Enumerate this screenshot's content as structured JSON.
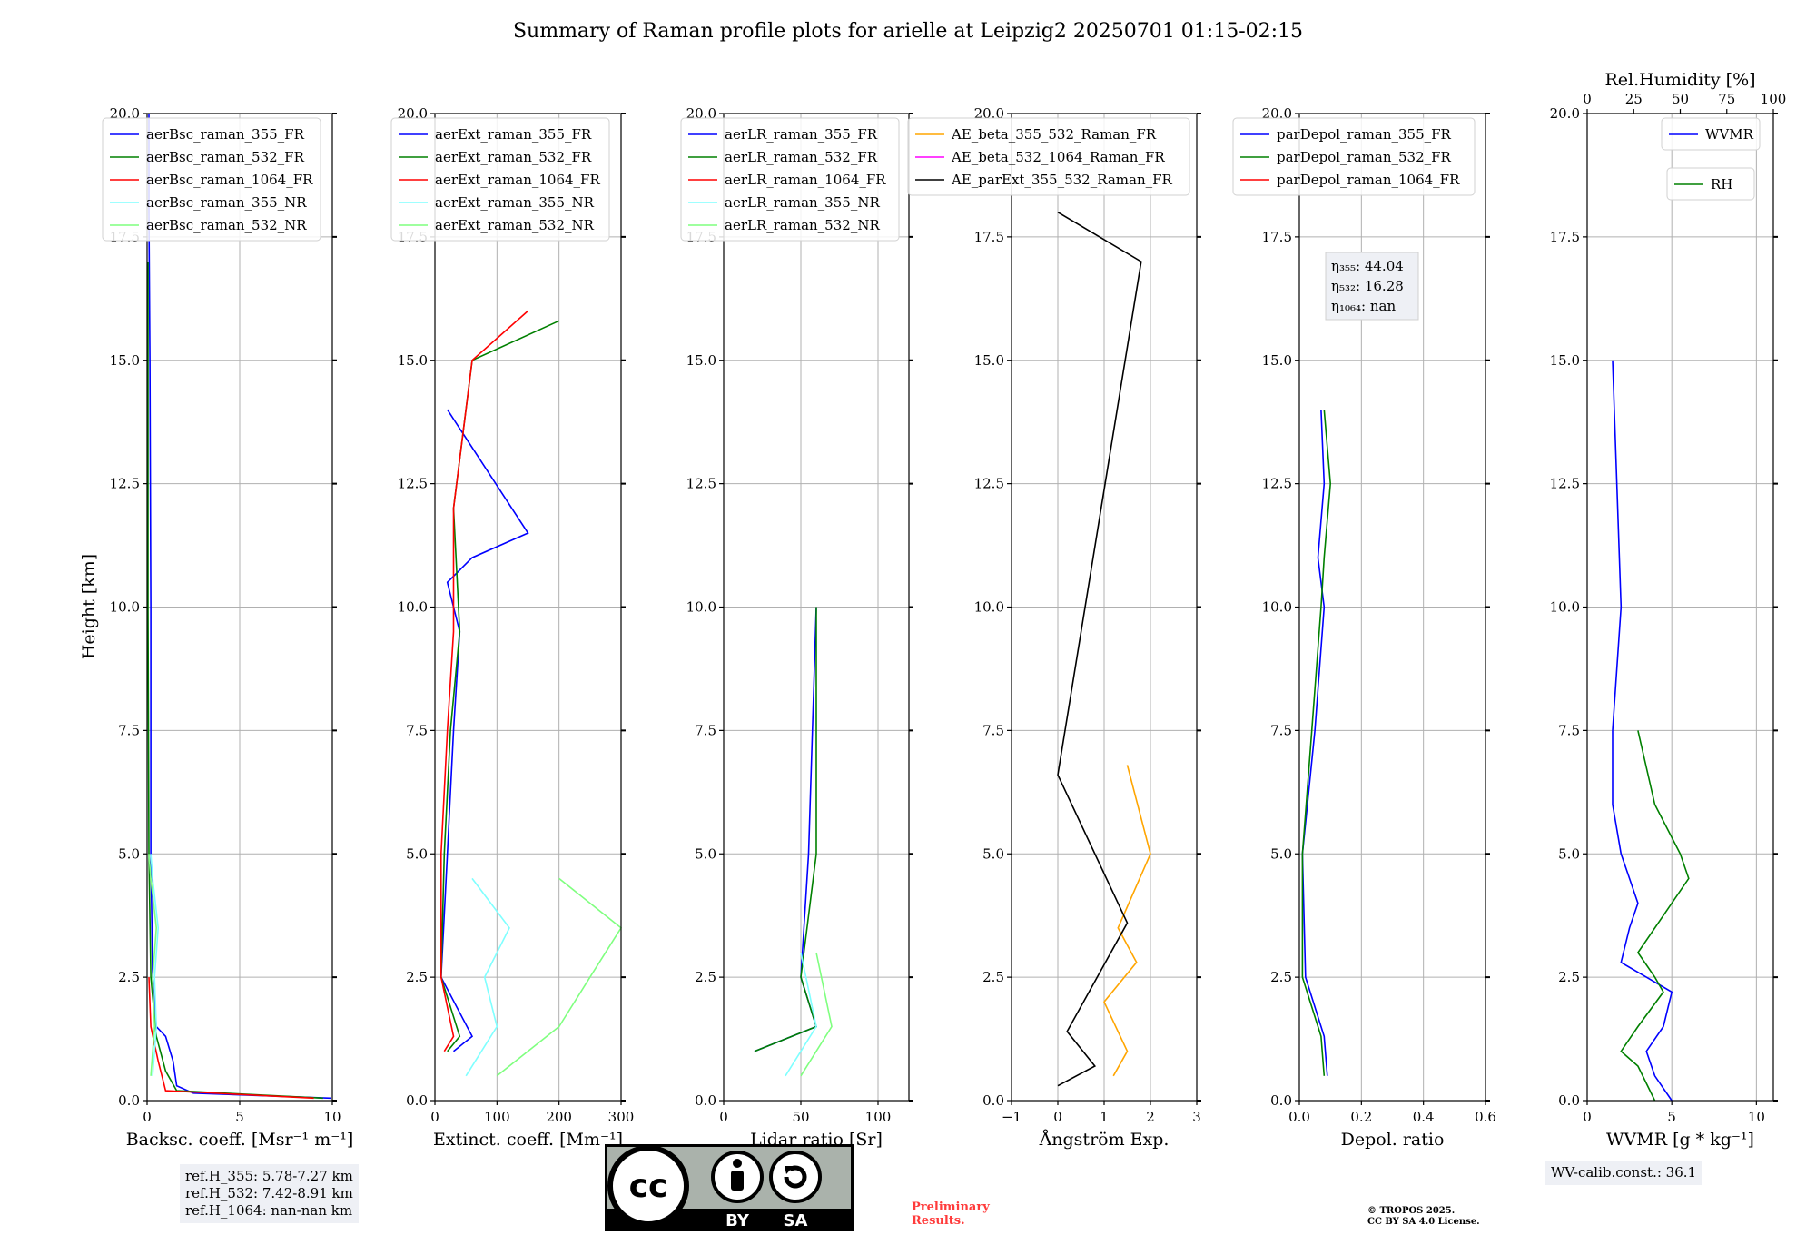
{
  "title": "Summary of Raman profile plots for arielle at Leipzig2 20250701 01:15-02:15",
  "y_label": "Height [km]",
  "y_ticks": [
    "0.0",
    "2.5",
    "5.0",
    "7.5",
    "10.0",
    "12.5",
    "15.0",
    "17.5",
    "20.0"
  ],
  "colors": {
    "b355": "#0000ff",
    "g532": "#008000",
    "r1064": "#ff0000",
    "cyan": "#7fffff",
    "lgreen": "#7fff7f",
    "orange": "#ffa500",
    "magenta": "#ff00ff",
    "black": "#000000"
  },
  "panels": [
    {
      "xlabel": "Backsc. coeff. [Msr⁻¹ m⁻¹]",
      "xticks": [
        "0",
        "5",
        "10"
      ],
      "legend": [
        "aerBsc_raman_355_FR",
        "aerBsc_raman_532_FR",
        "aerBsc_raman_1064_FR",
        "aerBsc_raman_355_NR",
        "aerBsc_raman_532_NR"
      ]
    },
    {
      "xlabel": "Extinct. coeff. [Mm⁻¹]",
      "xticks": [
        "0",
        "100",
        "200",
        "300"
      ],
      "legend": [
        "aerExt_raman_355_FR",
        "aerExt_raman_532_FR",
        "aerExt_raman_1064_FR",
        "aerExt_raman_355_NR",
        "aerExt_raman_532_NR"
      ]
    },
    {
      "xlabel": "Lidar ratio [Sr]",
      "xticks": [
        "0",
        "50",
        "100"
      ],
      "legend": [
        "aerLR_raman_355_FR",
        "aerLR_raman_532_FR",
        "aerLR_raman_1064_FR",
        "aerLR_raman_355_NR",
        "aerLR_raman_532_NR"
      ]
    },
    {
      "xlabel": "Ångström Exp.",
      "xticks": [
        "−1",
        "0",
        "1",
        "2",
        "3"
      ],
      "legend": [
        "AE_beta_355_532_Raman_FR",
        "AE_beta_532_1064_Raman_FR",
        "AE_parExt_355_532_Raman_FR"
      ]
    },
    {
      "xlabel": "Depol. ratio",
      "xticks": [
        "0.0",
        "0.2",
        "0.4",
        "0.6"
      ],
      "legend": [
        "parDepol_raman_355_FR",
        "parDepol_raman_532_FR",
        "parDepol_raman_1064_FR"
      ],
      "eta": [
        "η₃₅₅: 44.04",
        "η₅₃₂: 16.28",
        "η₁₀₆₄: nan"
      ]
    },
    {
      "xlabel": "WVMR [g * kg⁻¹]",
      "xticks": [
        "0",
        "5",
        "10"
      ],
      "top_label": "Rel.Humidity [%]",
      "top_ticks": [
        "0",
        "25",
        "50",
        "75",
        "100"
      ],
      "legend_wvmr": "WVMR",
      "legend_rh": "RH"
    }
  ],
  "chart_data": [
    {
      "type": "line",
      "panel": "backscatter",
      "ylim": [
        0,
        20
      ],
      "xlim": [
        0,
        10
      ],
      "xlabel": "Backsc. coeff. [Msr-1 m-1]",
      "ylabel": "Height [km]",
      "series": [
        {
          "name": "aerBsc_raman_355_FR",
          "x": [
            9.9,
            2.5,
            1.6,
            1.4,
            1.0,
            0.5,
            0.3,
            0.2,
            0.2,
            0.15,
            0.1,
            0.1
          ],
          "y": [
            0.05,
            0.15,
            0.3,
            0.8,
            1.3,
            1.5,
            2.5,
            5,
            10,
            15,
            18,
            20
          ]
        },
        {
          "name": "aerBsc_raman_532_FR",
          "x": [
            9.5,
            1.6,
            1.0,
            0.5,
            0.2,
            0.1,
            0.05,
            0.05
          ],
          "y": [
            0.05,
            0.2,
            0.6,
            1.3,
            2.5,
            5,
            10,
            17
          ]
        },
        {
          "name": "aerBsc_raman_1064_FR",
          "x": [
            9.0,
            1.0,
            0.6,
            0.2,
            0.1
          ],
          "y": [
            0.05,
            0.2,
            0.8,
            1.5,
            2.5
          ]
        },
        {
          "name": "aerBsc_raman_355_NR",
          "x": [
            0.3,
            0.5,
            0.4,
            0.6,
            0.3,
            0.2
          ],
          "y": [
            0.5,
            1.5,
            2.5,
            3.5,
            4.5,
            5
          ]
        },
        {
          "name": "aerBsc_raman_532_NR",
          "x": [
            0.2,
            0.4,
            0.3,
            0.5,
            0.2,
            0.1
          ],
          "y": [
            0.5,
            1.5,
            2.5,
            3.5,
            4.5,
            5
          ]
        }
      ]
    },
    {
      "type": "line",
      "panel": "extinction",
      "ylim": [
        0,
        20
      ],
      "xlim": [
        0,
        300
      ],
      "xlabel": "Extinct. coeff. [Mm-1]",
      "series": [
        {
          "name": "aerExt_raman_355_FR",
          "x": [
            30,
            60,
            10,
            20,
            30,
            40,
            20,
            60,
            150,
            20
          ],
          "y": [
            1.0,
            1.3,
            2.5,
            5,
            7.5,
            9.5,
            10.5,
            11.0,
            11.5,
            14
          ]
        },
        {
          "name": "aerExt_raman_532_FR",
          "x": [
            20,
            40,
            10,
            15,
            25,
            40,
            30,
            60,
            200
          ],
          "y": [
            1.0,
            1.3,
            2.5,
            5,
            7.5,
            9.5,
            12,
            15,
            15.8
          ]
        },
        {
          "name": "aerExt_raman_1064_FR",
          "x": [
            15,
            30,
            10,
            10,
            20,
            30,
            30,
            60,
            150
          ],
          "y": [
            1.0,
            1.3,
            2.5,
            5,
            7.5,
            9.5,
            12,
            15,
            16
          ]
        },
        {
          "name": "aerExt_raman_355_NR",
          "x": [
            50,
            100,
            80,
            120,
            60
          ],
          "y": [
            0.5,
            1.5,
            2.5,
            3.5,
            4.5
          ]
        },
        {
          "name": "aerExt_raman_532_NR",
          "x": [
            100,
            200,
            250,
            300,
            200
          ],
          "y": [
            0.5,
            1.5,
            2.5,
            3.5,
            4.5
          ]
        }
      ]
    },
    {
      "type": "line",
      "panel": "lidar_ratio",
      "ylim": [
        0,
        20
      ],
      "xlim": [
        0,
        120
      ],
      "xlabel": "Lidar ratio [Sr]",
      "series": [
        {
          "name": "aerLR_raman_355_FR",
          "x": [
            20,
            60,
            50,
            55,
            60
          ],
          "y": [
            1.0,
            1.5,
            2.5,
            5,
            10
          ]
        },
        {
          "name": "aerLR_raman_532_FR",
          "x": [
            20,
            60,
            50,
            60,
            60
          ],
          "y": [
            1.0,
            1.5,
            2.5,
            5,
            10
          ]
        },
        {
          "name": "aerLR_raman_1064_FR",
          "x": [],
          "y": []
        },
        {
          "name": "aerLR_raman_355_NR",
          "x": [
            40,
            60,
            50
          ],
          "y": [
            0.5,
            1.5,
            3
          ]
        },
        {
          "name": "aerLR_raman_532_NR",
          "x": [
            50,
            70,
            60
          ],
          "y": [
            0.5,
            1.5,
            3
          ]
        }
      ]
    },
    {
      "type": "line",
      "panel": "angstrom",
      "ylim": [
        0,
        20
      ],
      "xlim": [
        -1,
        3
      ],
      "xlabel": "Ångström Exp.",
      "series": [
        {
          "name": "AE_beta_355_532_Raman_FR",
          "x": [
            1.2,
            1.5,
            1.0,
            1.7,
            1.3,
            2.0,
            1.5
          ],
          "y": [
            0.5,
            1.0,
            2.0,
            2.8,
            3.5,
            5.0,
            6.8
          ]
        },
        {
          "name": "AE_beta_532_1064_Raman_FR",
          "x": [],
          "y": []
        },
        {
          "name": "AE_parExt_355_532_Raman_FR",
          "x": [
            0.0,
            0.8,
            0.2,
            1.5,
            0.0,
            1.8,
            0.0
          ],
          "y": [
            0.3,
            0.7,
            1.4,
            3.6,
            6.6,
            17.0,
            18.0
          ]
        }
      ]
    },
    {
      "type": "line",
      "panel": "depol",
      "ylim": [
        0,
        20
      ],
      "xlim": [
        0,
        0.6
      ],
      "xlabel": "Depol. ratio",
      "series": [
        {
          "name": "parDepol_raman_355_FR",
          "x": [
            0.09,
            0.08,
            0.02,
            0.01,
            0.05,
            0.08,
            0.06,
            0.08,
            0.07
          ],
          "y": [
            0.5,
            1.3,
            2.5,
            5.0,
            7.5,
            10.0,
            11.0,
            12.5,
            14.0
          ]
        },
        {
          "name": "parDepol_raman_532_FR",
          "x": [
            0.08,
            0.07,
            0.01,
            0.01,
            0.04,
            0.07,
            0.08,
            0.1,
            0.08
          ],
          "y": [
            0.5,
            1.3,
            2.5,
            5.0,
            7.5,
            10.0,
            11.0,
            12.5,
            14.0
          ]
        },
        {
          "name": "parDepol_raman_1064_FR",
          "x": [],
          "y": []
        }
      ]
    },
    {
      "type": "line",
      "panel": "wvmr",
      "ylim": [
        0,
        20
      ],
      "xlim": [
        0,
        11
      ],
      "xlabel": "WVMR [g*kg-1]",
      "series": [
        {
          "name": "WVMR",
          "x": [
            5.0,
            4.0,
            3.5,
            4.5,
            5.0,
            3.5,
            2.0,
            2.5,
            3.0,
            2.5,
            2.0,
            1.5,
            1.5,
            2.0,
            1.5
          ],
          "y": [
            0.0,
            0.5,
            1.0,
            1.5,
            2.2,
            2.5,
            2.8,
            3.5,
            4.0,
            4.5,
            5.0,
            6.0,
            7.5,
            10.0,
            15.0
          ]
        },
        {
          "name": "RH",
          "x": [
            4.0,
            3.0,
            2.0,
            3.0,
            4.5,
            4.0,
            3.0,
            5.0,
            6.0,
            5.5,
            4.0,
            3.0
          ],
          "y": [
            0.0,
            0.7,
            1.0,
            1.5,
            2.2,
            2.5,
            3.0,
            4.0,
            4.5,
            5.0,
            6.0,
            7.5
          ]
        }
      ]
    }
  ],
  "ref_box": [
    "ref.H_355: 5.78-7.27 km",
    "ref.H_532: 7.42-8.91 km",
    "ref.H_1064: nan-nan km"
  ],
  "wv_calib": "WV-calib.const.: 36.1",
  "preliminary": [
    "Preliminary",
    "Results."
  ],
  "copyright": [
    "© TROPOS 2025.",
    "CC BY SA 4.0 License."
  ],
  "cc_logo": {
    "cc": "cc",
    "by": "BY",
    "sa": "SA"
  }
}
